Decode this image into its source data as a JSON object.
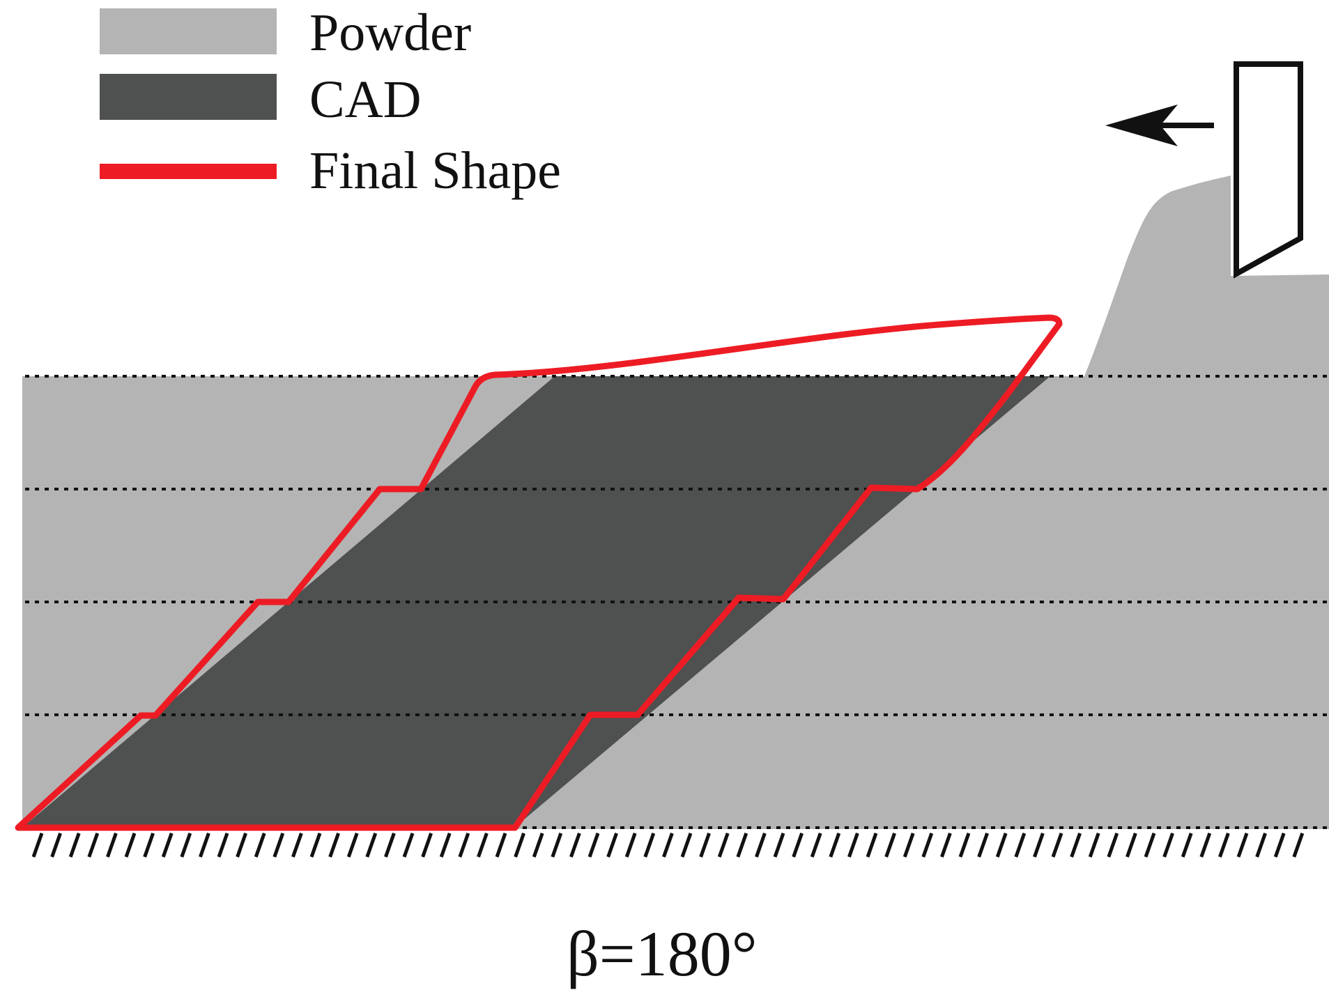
{
  "legend": {
    "items": [
      {
        "label": "Powder",
        "swatch": "fill",
        "color": "#b3b4b3"
      },
      {
        "label": "CAD",
        "swatch": "fill",
        "color": "#4f5050"
      },
      {
        "label": "Final Shape",
        "swatch": "line",
        "color": "#ed1c24"
      }
    ]
  },
  "caption": "β=180°",
  "colors": {
    "powder": "#b3b4b3",
    "cad": "#4f5050",
    "final_shape": "#ed1c24",
    "outline": "#111111",
    "background": "#ffffff"
  },
  "icons": {
    "recoater": "recoater-blade-icon",
    "direction": "left-arrow-icon",
    "build_plate": "hatched-ground-icon"
  }
}
